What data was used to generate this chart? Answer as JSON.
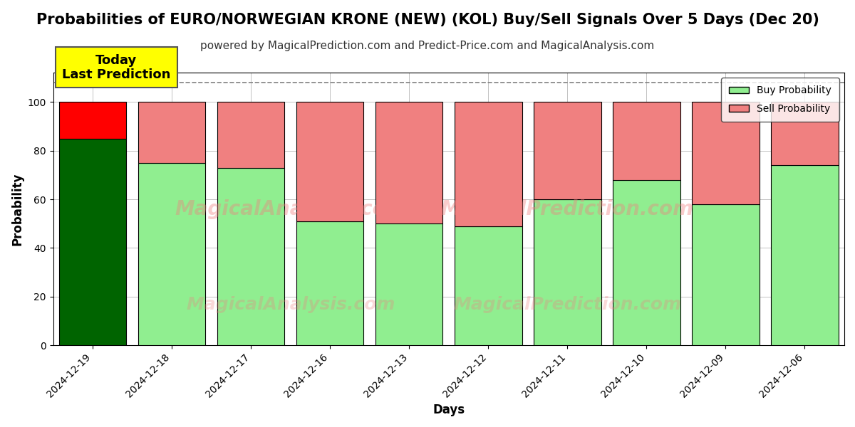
{
  "title": "Probabilities of EURO/NORWEGIAN KRONE (NEW) (KOL) Buy/Sell Signals Over 5 Days (Dec 20)",
  "subtitle": "powered by MagicalPrediction.com and Predict-Price.com and MagicalAnalysis.com",
  "xlabel": "Days",
  "ylabel": "Probability",
  "categories": [
    "2024-12-19",
    "2024-12-18",
    "2024-12-17",
    "2024-12-16",
    "2024-12-13",
    "2024-12-12",
    "2024-12-11",
    "2024-12-10",
    "2024-12-09",
    "2024-12-06"
  ],
  "buy_values": [
    85,
    75,
    73,
    51,
    50,
    49,
    60,
    68,
    58,
    74
  ],
  "sell_values": [
    15,
    25,
    27,
    49,
    50,
    51,
    40,
    32,
    42,
    26
  ],
  "today_index": 0,
  "buy_color_today": "#006400",
  "sell_color_today": "#FF0000",
  "buy_color_normal": "#90EE90",
  "sell_color_normal": "#F08080",
  "today_label": "Today\nLast Prediction",
  "today_label_bg": "#FFFF00",
  "ylim": [
    0,
    112
  ],
  "dashed_line_y": 108,
  "legend_buy": "Buy Probability",
  "legend_sell": "Sell Probability",
  "bar_edge_color": "#000000",
  "bar_width": 0.85,
  "title_fontsize": 15,
  "subtitle_fontsize": 11,
  "axis_label_fontsize": 12,
  "tick_fontsize": 10,
  "grid_color": "#aaaaaa",
  "background_color": "#ffffff",
  "watermark1": "MagicalAnalysis.com",
  "watermark2": "MagicalPrediction.com"
}
